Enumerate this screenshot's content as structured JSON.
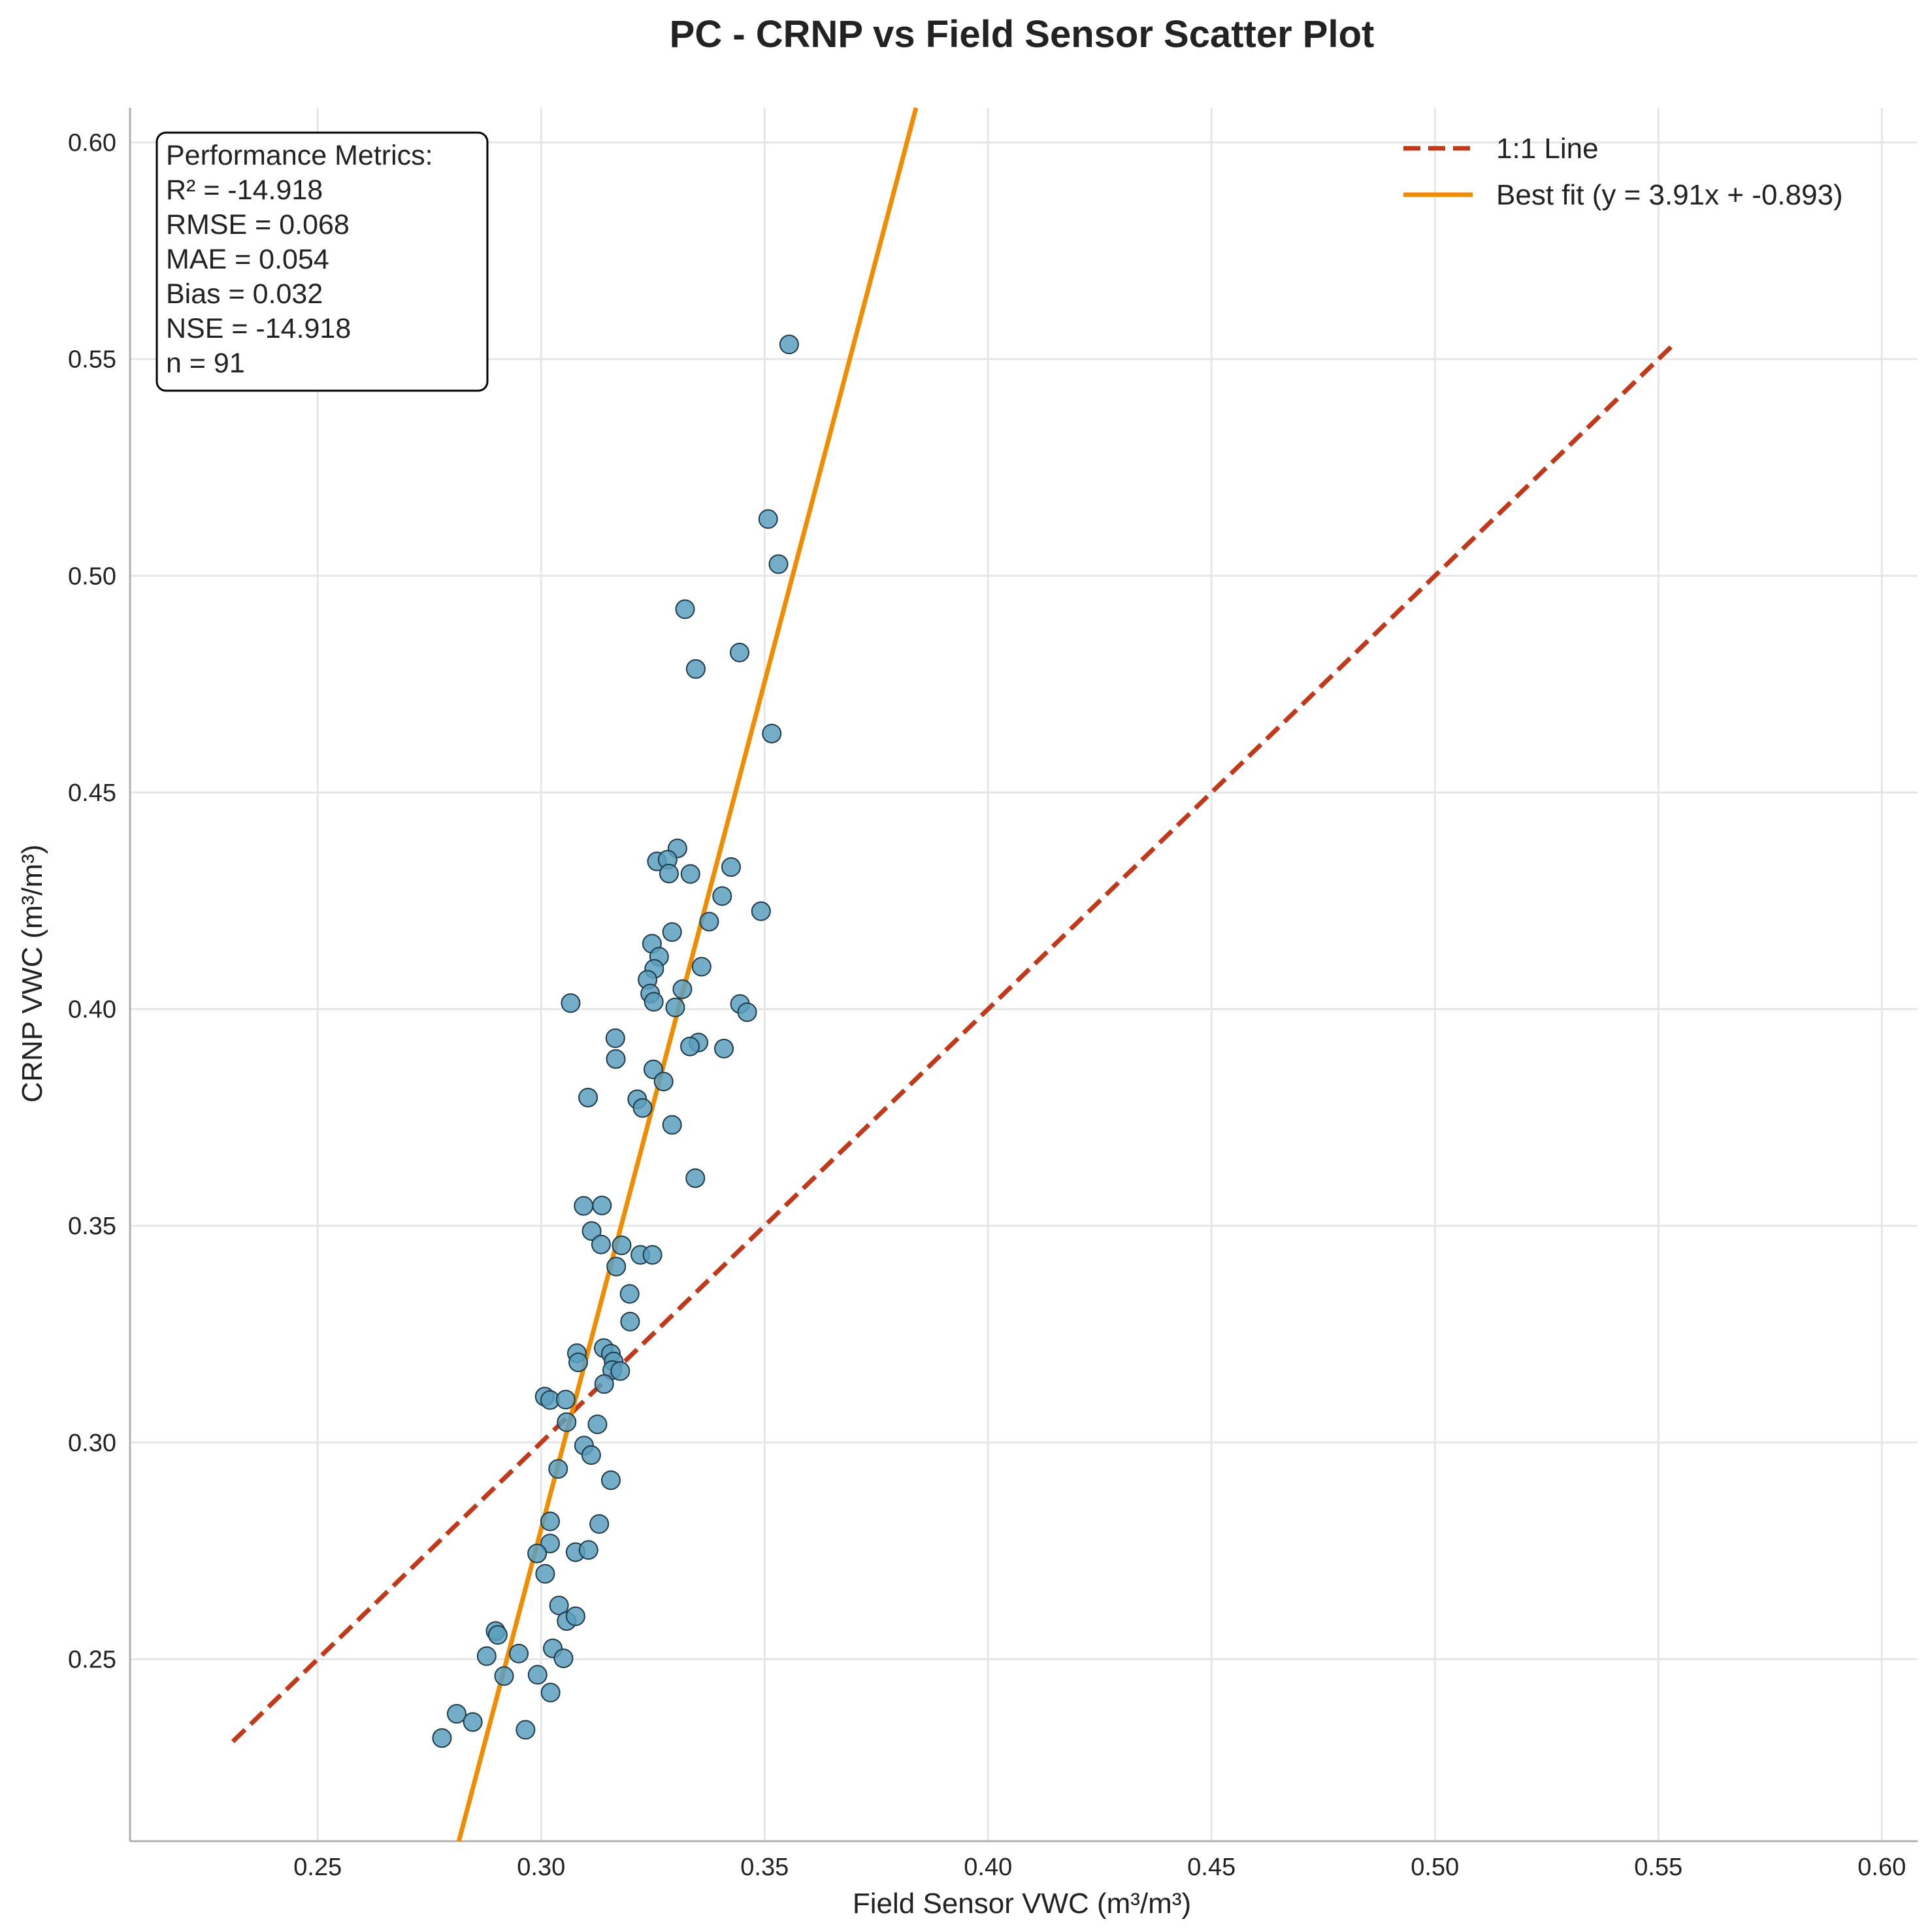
{
  "chart_data": {
    "type": "scatter",
    "title": "PC - CRNP vs Field Sensor Scatter Plot",
    "xlabel": "Field Sensor VWC (m³/m³)",
    "ylabel": "CRNP VWC (m³/m³)",
    "xlim": [
      0.208,
      0.608
    ],
    "ylim": [
      0.208,
      0.608
    ],
    "xticks": [
      "0.25",
      "0.30",
      "0.35",
      "0.40",
      "0.45",
      "0.50",
      "0.55",
      "0.60"
    ],
    "yticks": [
      "0.25",
      "0.30",
      "0.35",
      "0.40",
      "0.45",
      "0.50",
      "0.55",
      "0.60"
    ],
    "grid": true,
    "legend_position": "top-right",
    "colors": {
      "points": "#5b9fbd",
      "point_edge": "#1f3a48",
      "one_to_one": "#c0391b",
      "best_fit": "#f08c00",
      "grid": "#e6e6e6",
      "axis": "#b0b0b0"
    },
    "metrics_box": {
      "lines": [
        "Performance Metrics:",
        "R² = -14.918",
        "RMSE = 0.068",
        "MAE = 0.054",
        "Bias = 0.032",
        "NSE = -14.918",
        "n = 91"
      ]
    },
    "legend": [
      {
        "label": "1:1 Line",
        "style": "dashed",
        "color": "#c0391b"
      },
      {
        "label": "Best fit (y = 3.91x + -0.893)",
        "style": "solid",
        "color": "#f08c00"
      }
    ],
    "one_to_one_line": {
      "x": [
        0.231,
        0.554
      ],
      "y": [
        0.231,
        0.554
      ]
    },
    "best_fit_line": {
      "slope": 3.91,
      "intercept": -0.893
    },
    "series": [
      {
        "x": [
          0.3555,
          0.3508,
          0.3531,
          0.3322,
          0.3444,
          0.3346,
          0.3516,
          0.3305,
          0.3259,
          0.3283,
          0.3286,
          0.3334,
          0.3425,
          0.3405,
          0.3492,
          0.3376,
          0.3293,
          0.3248,
          0.3264,
          0.3253,
          0.3238,
          0.3244,
          0.3359,
          0.3316,
          0.3252,
          0.3066,
          0.33,
          0.3445,
          0.3461,
          0.3166,
          0.3352,
          0.3333,
          0.3409,
          0.3167,
          0.3251,
          0.3274,
          0.3105,
          0.3215,
          0.3227,
          0.3293,
          0.3345,
          0.3095,
          0.3136,
          0.3113,
          0.3134,
          0.318,
          0.3222,
          0.3249,
          0.3168,
          0.3198,
          0.3199,
          0.308,
          0.3083,
          0.314,
          0.3156,
          0.3162,
          0.3159,
          0.3177,
          0.3008,
          0.302,
          0.3055,
          0.3057,
          0.3126,
          0.3096,
          0.3112,
          0.3038,
          0.3156,
          0.302,
          0.313,
          0.302,
          0.2991,
          0.3077,
          0.3106,
          0.3009,
          0.304,
          0.3057,
          0.3077,
          0.2898,
          0.2903,
          0.2878,
          0.295,
          0.3026,
          0.305,
          0.2917,
          0.2992,
          0.3021,
          0.2811,
          0.2847,
          0.2965,
          0.2778,
          0.3141
        ],
        "y": [
          0.5534,
          0.5131,
          0.5027,
          0.4923,
          0.4823,
          0.4785,
          0.4636,
          0.4371,
          0.4341,
          0.4345,
          0.4313,
          0.4312,
          0.4328,
          0.4261,
          0.4226,
          0.4202,
          0.4178,
          0.4151,
          0.4121,
          0.4093,
          0.4068,
          0.4036,
          0.4098,
          0.4046,
          0.4017,
          0.4014,
          0.4004,
          0.4012,
          0.3993,
          0.3933,
          0.3923,
          0.3914,
          0.3909,
          0.3885,
          0.3861,
          0.3833,
          0.3796,
          0.3792,
          0.3772,
          0.3733,
          0.361,
          0.3546,
          0.3547,
          0.3488,
          0.3457,
          0.3455,
          0.3433,
          0.3433,
          0.3406,
          0.3343,
          0.3279,
          0.3206,
          0.3185,
          0.3218,
          0.3205,
          0.3187,
          0.3167,
          0.3165,
          0.3106,
          0.3098,
          0.3099,
          0.3047,
          0.3042,
          0.2993,
          0.2971,
          0.2939,
          0.2913,
          0.2818,
          0.2812,
          0.2767,
          0.2744,
          0.2747,
          0.2752,
          0.2697,
          0.2624,
          0.2588,
          0.2599,
          0.2565,
          0.2556,
          0.2507,
          0.2513,
          0.2525,
          0.2502,
          0.2461,
          0.2464,
          0.2423,
          0.2374,
          0.2355,
          0.2337,
          0.2318,
          0.3135
        ]
      }
    ]
  }
}
